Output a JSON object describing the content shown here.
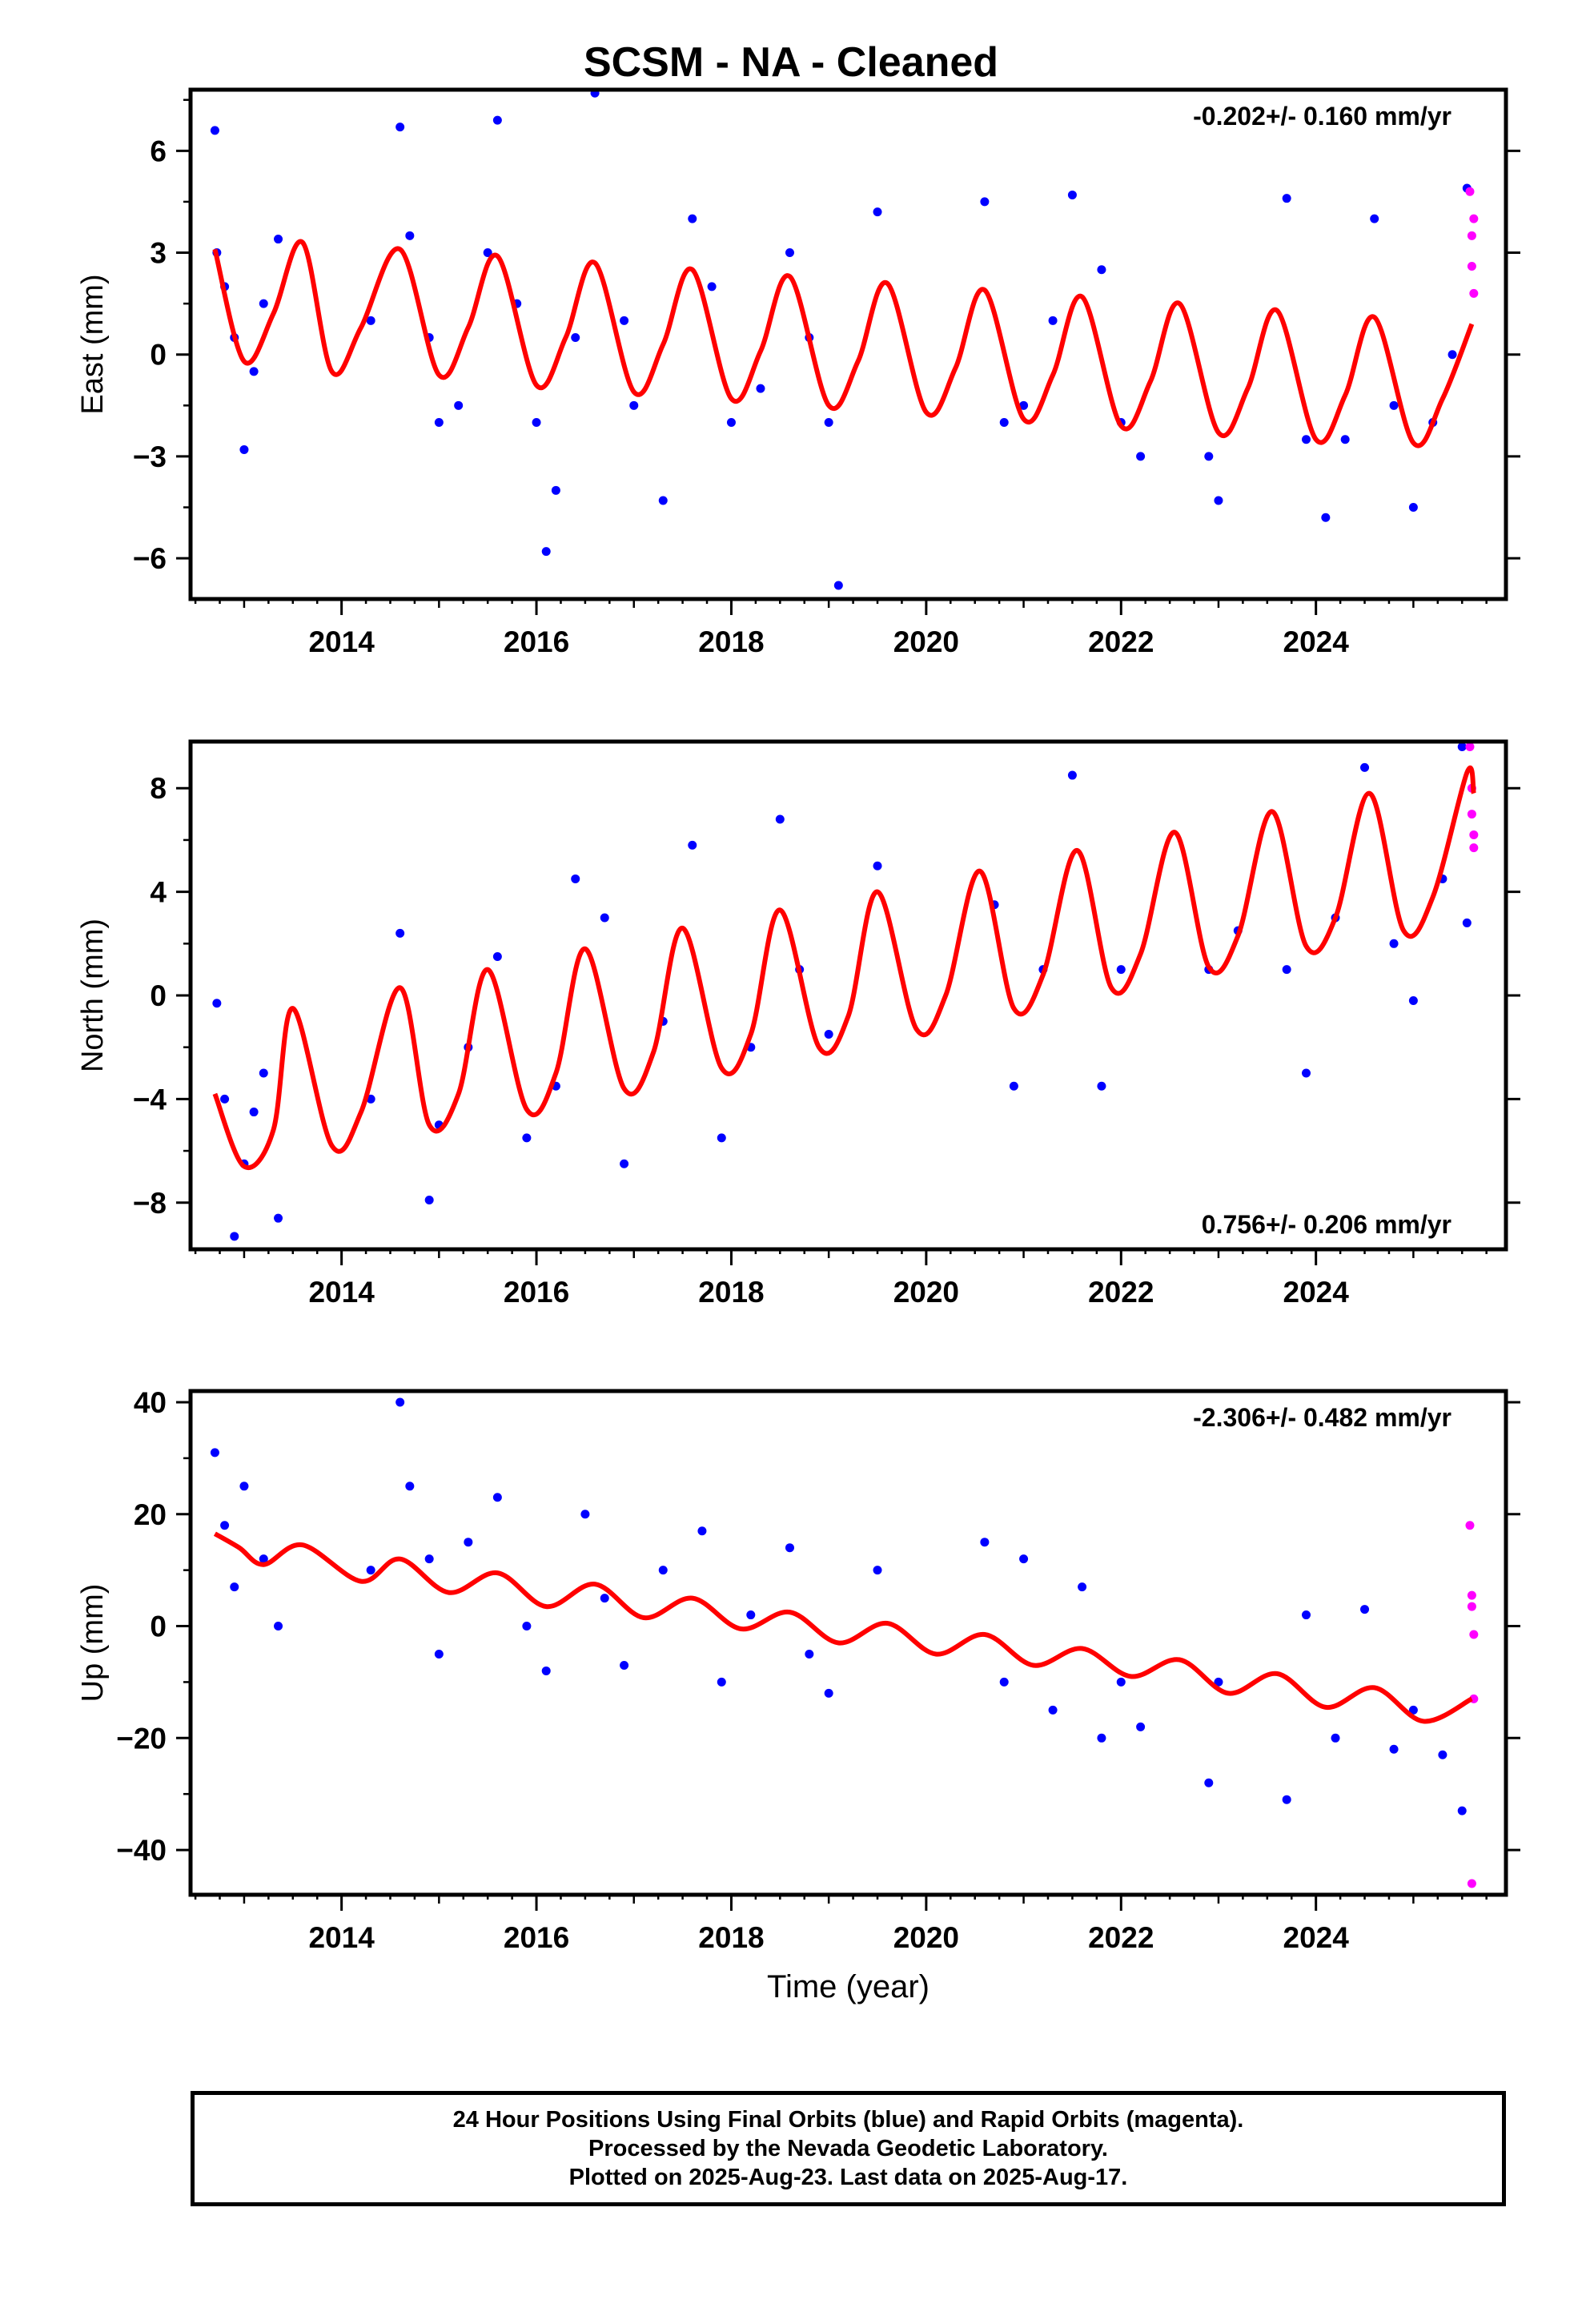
{
  "title": "SCSM  - NA - Cleaned",
  "xlabel": "Time (year)",
  "footer": [
    "24 Hour Positions Using Final Orbits (blue) and Rapid Orbits (magenta).",
    "Processed by the Nevada Geodetic Laboratory.",
    "Plotted on 2025-Aug-23. Last data on 2025-Aug-17."
  ],
  "colors": {
    "final_orbits": "#0000ff",
    "rapid_orbits": "#ff00ff",
    "model_fit": "#ff0000",
    "axes": "#000000"
  },
  "chart_data": [
    {
      "type": "scatter",
      "component": "east",
      "ylabel": "East (mm)",
      "rate_label": "-0.202+/- 0.160 mm/yr",
      "rate_position": "top-right",
      "xlim": [
        2012.45,
        2025.95
      ],
      "ylim": [
        -7.2,
        7.8
      ],
      "xticks": [
        2014,
        2016,
        2018,
        2020,
        2022,
        2024
      ],
      "yticks": [
        -6,
        -3,
        0,
        3,
        6
      ],
      "series": [
        {
          "name": "Final Orbits",
          "color": "blue",
          "style": "points",
          "x": [
            2012.7,
            2012.72,
            2012.8,
            2012.9,
            2013.0,
            2013.1,
            2013.2,
            2013.35,
            2014.3,
            2014.6,
            2014.7,
            2014.9,
            2015.0,
            2015.2,
            2015.5,
            2015.6,
            2015.8,
            2016.0,
            2016.1,
            2016.2,
            2016.4,
            2016.6,
            2016.9,
            2017.0,
            2017.3,
            2017.6,
            2017.8,
            2018.0,
            2018.3,
            2018.6,
            2018.8,
            2019.0,
            2019.1,
            2019.5,
            2020.6,
            2020.8,
            2021.0,
            2021.3,
            2021.5,
            2021.8,
            2022.0,
            2022.2,
            2022.9,
            2023.0,
            2023.7,
            2023.9,
            2024.1,
            2024.3,
            2024.6,
            2024.8,
            2025.0,
            2025.2,
            2025.4,
            2025.55
          ],
          "y": [
            6.6,
            3.0,
            2.0,
            0.5,
            -2.8,
            -0.5,
            1.5,
            3.4,
            1.0,
            6.7,
            3.5,
            0.5,
            -2.0,
            -1.5,
            3.0,
            6.9,
            1.5,
            -2.0,
            -5.8,
            -4.0,
            0.5,
            7.7,
            1.0,
            -1.5,
            -4.3,
            4.0,
            2.0,
            -2.0,
            -1.0,
            3.0,
            0.5,
            -2.0,
            -6.8,
            4.2,
            4.5,
            -2.0,
            -1.5,
            1.0,
            4.7,
            2.5,
            -2.0,
            -3.0,
            -3.0,
            -4.3,
            4.6,
            -2.5,
            -4.8,
            -2.5,
            4.0,
            -1.5,
            -4.5,
            -2.0,
            0.0,
            4.9
          ]
        },
        {
          "name": "Rapid Orbits",
          "color": "magenta",
          "style": "points",
          "x": [
            2025.58,
            2025.6,
            2025.6,
            2025.62,
            2025.62
          ],
          "y": [
            4.8,
            3.5,
            2.6,
            1.8,
            4.0
          ]
        },
        {
          "name": "Model fit",
          "color": "red",
          "style": "line",
          "x": [
            2012.7,
            2013.0,
            2013.3,
            2013.6,
            2013.9,
            2014.2,
            2014.6,
            2015.0,
            2015.3,
            2015.6,
            2016.0,
            2016.3,
            2016.6,
            2017.0,
            2017.3,
            2017.6,
            2018.0,
            2018.3,
            2018.6,
            2019.0,
            2019.3,
            2019.6,
            2020.0,
            2020.3,
            2020.6,
            2021.0,
            2021.3,
            2021.6,
            2022.0,
            2022.3,
            2022.6,
            2023.0,
            2023.3,
            2023.6,
            2024.0,
            2024.3,
            2024.6,
            2025.0,
            2025.3,
            2025.6
          ],
          "y": [
            3.1,
            -0.2,
            1.2,
            3.3,
            -0.5,
            0.8,
            3.1,
            -0.6,
            0.8,
            2.9,
            -0.9,
            0.5,
            2.7,
            -1.1,
            0.3,
            2.5,
            -1.3,
            0.1,
            2.3,
            -1.5,
            -0.2,
            2.1,
            -1.7,
            -0.4,
            1.9,
            -1.9,
            -0.6,
            1.7,
            -2.1,
            -0.8,
            1.5,
            -2.3,
            -1.0,
            1.3,
            -2.5,
            -1.2,
            1.1,
            -2.6,
            -1.3,
            0.9
          ]
        }
      ]
    },
    {
      "type": "scatter",
      "component": "north",
      "ylabel": "North (mm)",
      "rate_label": "0.756+/- 0.206 mm/yr",
      "rate_position": "bottom-right",
      "xlim": [
        2012.45,
        2025.95
      ],
      "ylim": [
        -9.8,
        9.8
      ],
      "xticks": [
        2014,
        2016,
        2018,
        2020,
        2022,
        2024
      ],
      "yticks": [
        -8,
        -4,
        0,
        4,
        8
      ],
      "series": [
        {
          "name": "Final Orbits",
          "color": "blue",
          "style": "points",
          "x": [
            2012.72,
            2012.8,
            2012.9,
            2013.0,
            2013.1,
            2013.2,
            2013.35,
            2014.3,
            2014.6,
            2014.9,
            2015.0,
            2015.3,
            2015.6,
            2015.9,
            2016.2,
            2016.4,
            2016.7,
            2016.9,
            2017.3,
            2017.6,
            2017.9,
            2018.2,
            2018.5,
            2018.7,
            2019.0,
            2019.5,
            2020.7,
            2020.9,
            2021.2,
            2021.5,
            2021.8,
            2022.0,
            2022.9,
            2023.2,
            2023.7,
            2023.9,
            2024.2,
            2024.5,
            2024.8,
            2025.0,
            2025.3,
            2025.5,
            2025.55
          ],
          "y": [
            -0.3,
            -4.0,
            -9.3,
            -6.5,
            -4.5,
            -3.0,
            -8.6,
            -4.0,
            2.4,
            -7.9,
            -5.0,
            -2.0,
            1.5,
            -5.5,
            -3.5,
            4.5,
            3.0,
            -6.5,
            -1.0,
            5.8,
            -5.5,
            -2.0,
            6.8,
            1.0,
            -1.5,
            5.0,
            3.5,
            -3.5,
            1.0,
            8.5,
            -3.5,
            1.0,
            1.0,
            2.5,
            1.0,
            -3.0,
            3.0,
            8.8,
            2.0,
            -0.2,
            4.5,
            9.6,
            2.8
          ]
        },
        {
          "name": "Rapid Orbits",
          "color": "magenta",
          "style": "points",
          "x": [
            2025.58,
            2025.6,
            2025.6,
            2025.62,
            2025.62
          ],
          "y": [
            9.6,
            8.0,
            7.0,
            6.2,
            5.7
          ]
        },
        {
          "name": "Model fit",
          "color": "red",
          "style": "line",
          "x": [
            2012.7,
            2013.0,
            2013.3,
            2013.5,
            2013.9,
            2014.2,
            2014.6,
            2014.9,
            2015.2,
            2015.5,
            2015.9,
            2016.2,
            2016.5,
            2016.9,
            2017.2,
            2017.5,
            2017.9,
            2018.2,
            2018.5,
            2018.9,
            2019.2,
            2019.5,
            2019.9,
            2020.2,
            2020.55,
            2020.9,
            2021.2,
            2021.55,
            2021.9,
            2022.2,
            2022.55,
            2022.9,
            2023.2,
            2023.55,
            2023.9,
            2024.2,
            2024.55,
            2024.9,
            2025.2,
            2025.55,
            2025.62
          ],
          "y": [
            -3.8,
            -6.6,
            -5.2,
            -0.5,
            -5.8,
            -4.5,
            0.3,
            -5.0,
            -3.8,
            1.0,
            -4.4,
            -3.0,
            1.8,
            -3.6,
            -2.2,
            2.6,
            -2.8,
            -1.5,
            3.3,
            -2.0,
            -0.8,
            4.0,
            -1.3,
            0.0,
            4.8,
            -0.5,
            0.8,
            5.6,
            0.3,
            1.6,
            6.3,
            1.1,
            2.3,
            7.1,
            1.9,
            3.0,
            7.8,
            2.5,
            3.8,
            8.6,
            7.8
          ]
        }
      ]
    },
    {
      "type": "scatter",
      "component": "up",
      "ylabel": "Up (mm)",
      "rate_label": "-2.306+/- 0.482 mm/yr",
      "rate_position": "top-right",
      "xlim": [
        2012.45,
        2025.95
      ],
      "ylim": [
        -48,
        42
      ],
      "xticks": [
        2014,
        2016,
        2018,
        2020,
        2022,
        2024
      ],
      "yticks": [
        -40,
        -20,
        0,
        20,
        40
      ],
      "series": [
        {
          "name": "Final Orbits",
          "color": "blue",
          "style": "points",
          "x": [
            2012.7,
            2012.8,
            2012.9,
            2013.0,
            2013.2,
            2013.35,
            2014.3,
            2014.6,
            2014.7,
            2014.9,
            2015.0,
            2015.3,
            2015.6,
            2015.9,
            2016.1,
            2016.5,
            2016.7,
            2016.9,
            2017.3,
            2017.7,
            2017.9,
            2018.2,
            2018.6,
            2018.8,
            2019.0,
            2019.5,
            2020.6,
            2020.8,
            2021.0,
            2021.3,
            2021.6,
            2021.8,
            2022.0,
            2022.2,
            2022.9,
            2023.0,
            2023.7,
            2023.9,
            2024.2,
            2024.5,
            2024.8,
            2025.0,
            2025.3,
            2025.5
          ],
          "y": [
            31.0,
            18.0,
            7.0,
            25.0,
            12.0,
            0.0,
            10.0,
            40.0,
            25.0,
            12.0,
            -5.0,
            15.0,
            23.0,
            0.0,
            -8.0,
            20.0,
            5.0,
            -7.0,
            10.0,
            17.0,
            -10.0,
            2.0,
            14.0,
            -5.0,
            -12.0,
            10.0,
            15.0,
            -10.0,
            12.0,
            -15.0,
            7.0,
            -20.0,
            -10.0,
            -18.0,
            -28.0,
            -10.0,
            -31.0,
            2.0,
            -20.0,
            3.0,
            -22.0,
            -15.0,
            -23.0,
            -33.0
          ]
        },
        {
          "name": "Rapid Orbits",
          "color": "magenta",
          "style": "points",
          "x": [
            2025.58,
            2025.6,
            2025.6,
            2025.62,
            2025.62,
            2025.6
          ],
          "y": [
            18.0,
            5.5,
            3.5,
            -1.5,
            -13.0,
            -46.0
          ]
        },
        {
          "name": "Model fit",
          "color": "red",
          "style": "line",
          "x": [
            2012.7,
            2012.95,
            2013.2,
            2013.6,
            2014.2,
            2014.6,
            2015.1,
            2015.6,
            2016.1,
            2016.6,
            2017.1,
            2017.6,
            2018.1,
            2018.6,
            2019.1,
            2019.6,
            2020.1,
            2020.6,
            2021.1,
            2021.6,
            2022.1,
            2022.6,
            2023.1,
            2023.6,
            2024.1,
            2024.6,
            2025.1,
            2025.6
          ],
          "y": [
            16.5,
            14.0,
            11.0,
            14.5,
            8.0,
            12.0,
            6.0,
            9.5,
            3.5,
            7.5,
            1.5,
            5.0,
            -0.5,
            2.5,
            -3.0,
            0.5,
            -5.0,
            -1.5,
            -7.0,
            -4.0,
            -9.0,
            -6.0,
            -12.0,
            -8.5,
            -14.5,
            -11.0,
            -17.0,
            -13.0
          ]
        }
      ]
    }
  ]
}
